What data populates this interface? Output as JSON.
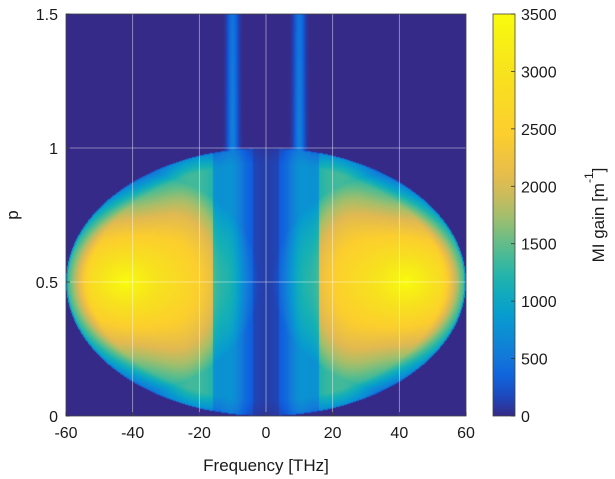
{
  "chart_data": {
    "type": "heatmap",
    "title": "",
    "xlabel": "Frequency [THz]",
    "ylabel": "p",
    "colorbar_label": "MI gain [m",
    "colorbar_label_sup": "-1",
    "colorbar_label_close": "]",
    "xlim": [
      -60,
      60
    ],
    "ylim": [
      0,
      1.5
    ],
    "clim": [
      0,
      3500
    ],
    "xticks": [
      -60,
      -40,
      -20,
      0,
      20,
      40,
      60
    ],
    "xtick_labels": [
      "-60",
      "-40",
      "-20",
      "0",
      "20",
      "40",
      "60"
    ],
    "yticks": [
      0,
      0.5,
      1,
      1.5
    ],
    "ytick_labels": [
      "0",
      "0.5",
      "1",
      "1.5"
    ],
    "cticks": [
      0,
      500,
      1000,
      1500,
      2000,
      2500,
      3000,
      3500
    ],
    "ctick_labels": [
      "0",
      "500",
      "1000",
      "1500",
      "2000",
      "2500",
      "3000",
      "3500"
    ],
    "grid": true,
    "colormap": "parula",
    "background_color": "#352a87",
    "gain_region": {
      "shape": "ellipse",
      "center_p": 0.5,
      "half_height_p": 0.5,
      "max_frequency_thz": 60,
      "peak_frequency_thz": 42,
      "peak_gain": 3500,
      "spike_frequency_thz": 10,
      "spike_top_p": 1.5
    }
  }
}
